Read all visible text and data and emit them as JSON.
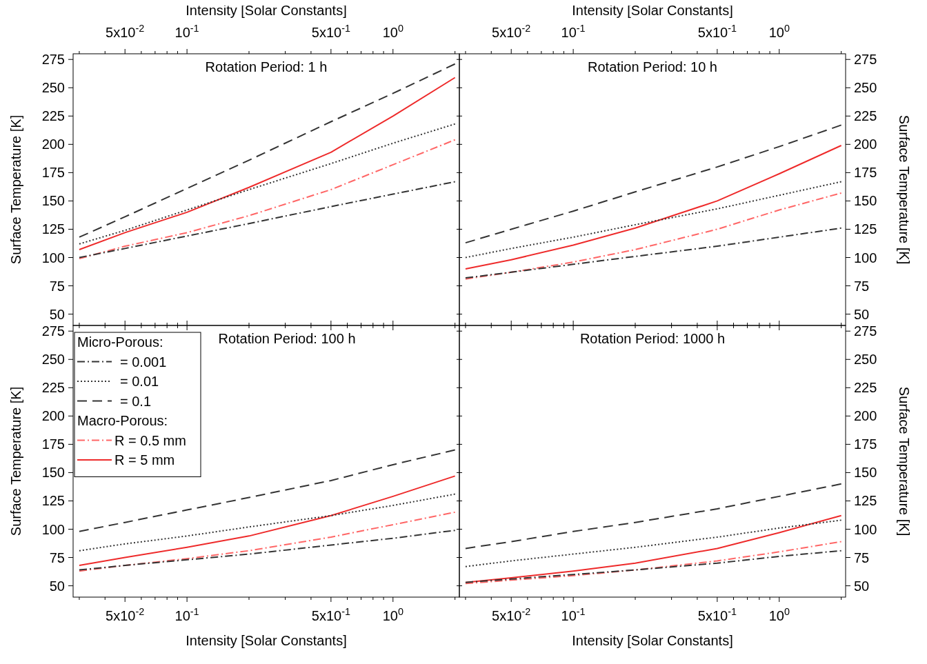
{
  "chart_data": [
    {
      "type": "line",
      "title": "Rotation Period: 1 h",
      "xlabel": "Intensity [Solar Constants]",
      "ylabel": "Surface Temperature [K]",
      "log": "x",
      "xlim": [
        0.028,
        2.1
      ],
      "xticks": [
        {
          "value": 0.03,
          "label": null
        },
        {
          "value": 0.04,
          "label": null
        },
        {
          "value": 0.05,
          "label": "5x10$^{-2}$"
        },
        {
          "value": 0.06,
          "label": null
        },
        {
          "value": 0.07,
          "label": null
        },
        {
          "value": 0.08,
          "label": null
        },
        {
          "value": 0.09,
          "label": null
        },
        {
          "value": 0.1,
          "label": "10$^{-1}$"
        },
        {
          "value": 0.2,
          "label": null
        },
        {
          "value": 0.3,
          "label": null
        },
        {
          "value": 0.4,
          "label": null
        },
        {
          "value": 0.5,
          "label": "5x10$^{-1}$"
        },
        {
          "value": 0.6,
          "label": null
        },
        {
          "value": 0.7,
          "label": null
        },
        {
          "value": 0.8,
          "label": null
        },
        {
          "value": 0.9,
          "label": null
        },
        {
          "value": 1,
          "label": "10$^{0}$"
        },
        {
          "value": 2,
          "label": null
        }
      ],
      "ylim": [
        40,
        280
      ],
      "yticks": [
        50,
        75,
        100,
        125,
        150,
        175,
        200,
        225,
        250,
        275
      ],
      "legend": false,
      "x": [
        0.03,
        0.05,
        0.1,
        0.2,
        0.5,
        1,
        2
      ],
      "series": [
        {
          "color": "#333333",
          "line_style": "dashdot",
          "values": [
            100,
            108,
            119,
            130,
            145,
            156,
            167
          ]
        },
        {
          "color": "#333333",
          "line_style": "dotted",
          "values": [
            112,
            124,
            142,
            160,
            183,
            201,
            218
          ]
        },
        {
          "color": "#333333",
          "line_style": "dashed",
          "values": [
            118,
            136,
            161,
            186,
            220,
            245,
            271
          ]
        },
        {
          "color": "#ff6666",
          "line_style": "dashdot",
          "values": [
            99,
            110,
            122,
            137,
            160,
            182,
            204
          ]
        },
        {
          "color": "#ee2a2a",
          "line_style": "solid",
          "values": [
            107,
            122,
            140,
            162,
            193,
            225,
            259
          ]
        }
      ]
    },
    {
      "type": "line",
      "title": "Rotation Period: 10 h",
      "xlabel": "Intensity [Solar Constants]",
      "ylabel": "Surface Temperature [K]",
      "log": "x",
      "xlim": [
        0.028,
        2.1
      ],
      "xticks": [
        {
          "value": 0.03,
          "label": null
        },
        {
          "value": 0.04,
          "label": null
        },
        {
          "value": 0.05,
          "label": "5x10$^{-2}$"
        },
        {
          "value": 0.06,
          "label": null
        },
        {
          "value": 0.07,
          "label": null
        },
        {
          "value": 0.08,
          "label": null
        },
        {
          "value": 0.09,
          "label": null
        },
        {
          "value": 0.1,
          "label": "10$^{-1}$"
        },
        {
          "value": 0.2,
          "label": null
        },
        {
          "value": 0.3,
          "label": null
        },
        {
          "value": 0.4,
          "label": null
        },
        {
          "value": 0.5,
          "label": "5x10$^{-1}$"
        },
        {
          "value": 0.6,
          "label": null
        },
        {
          "value": 0.7,
          "label": null
        },
        {
          "value": 0.8,
          "label": null
        },
        {
          "value": 0.9,
          "label": null
        },
        {
          "value": 1,
          "label": "10$^{0}$"
        },
        {
          "value": 2,
          "label": null
        }
      ],
      "ylim": [
        40,
        280
      ],
      "yticks": [
        50,
        75,
        100,
        125,
        150,
        175,
        200,
        225,
        250,
        275
      ],
      "legend": false,
      "x": [
        0.03,
        0.05,
        0.1,
        0.2,
        0.5,
        1,
        2
      ],
      "series": [
        {
          "color": "#333333",
          "line_style": "dashdot",
          "values": [
            82,
            87,
            94,
            101,
            110,
            118,
            126
          ]
        },
        {
          "color": "#333333",
          "line_style": "dotted",
          "values": [
            100,
            108,
            118,
            129,
            143,
            155,
            167
          ]
        },
        {
          "color": "#333333",
          "line_style": "dashed",
          "values": [
            113,
            125,
            141,
            158,
            180,
            198,
            217
          ]
        },
        {
          "color": "#ff6666",
          "line_style": "dashdot",
          "values": [
            81,
            87,
            96,
            107,
            125,
            142,
            157
          ]
        },
        {
          "color": "#ee2a2a",
          "line_style": "solid",
          "values": [
            90,
            98,
            111,
            126,
            150,
            174,
            199
          ]
        }
      ]
    },
    {
      "type": "line",
      "title": "Rotation Period: 100 h",
      "xlabel": "Intensity [Solar Constants]",
      "ylabel": "Surface Temperature [K]",
      "log": "x",
      "xlim": [
        0.028,
        2.1
      ],
      "xticks": [
        {
          "value": 0.03,
          "label": null
        },
        {
          "value": 0.04,
          "label": null
        },
        {
          "value": 0.05,
          "label": "5x10$^{-2}$"
        },
        {
          "value": 0.06,
          "label": null
        },
        {
          "value": 0.07,
          "label": null
        },
        {
          "value": 0.08,
          "label": null
        },
        {
          "value": 0.09,
          "label": null
        },
        {
          "value": 0.1,
          "label": "10$^{-1}$"
        },
        {
          "value": 0.2,
          "label": null
        },
        {
          "value": 0.3,
          "label": null
        },
        {
          "value": 0.4,
          "label": null
        },
        {
          "value": 0.5,
          "label": "5x10$^{-1}$"
        },
        {
          "value": 0.6,
          "label": null
        },
        {
          "value": 0.7,
          "label": null
        },
        {
          "value": 0.8,
          "label": null
        },
        {
          "value": 0.9,
          "label": null
        },
        {
          "value": 1,
          "label": "10$^{0}$"
        },
        {
          "value": 2,
          "label": null
        }
      ],
      "ylim": [
        40,
        280
      ],
      "yticks": [
        50,
        75,
        100,
        125,
        150,
        175,
        200,
        225,
        250,
        275
      ],
      "legend": "top left",
      "legend_title": "Micro-Porous:",
      "annotations": [
        "Macro-Porous:"
      ],
      "x": [
        0.03,
        0.05,
        0.1,
        0.2,
        0.5,
        1,
        2
      ],
      "series": [
        {
          "name": "= 0.001",
          "color": "#333333",
          "line_style": "dashdot",
          "values": [
            64,
            68,
            73,
            78,
            86,
            92,
            99
          ]
        },
        {
          "name": "= 0.01",
          "color": "#333333",
          "line_style": "dotted",
          "values": [
            81,
            87,
            94,
            102,
            112,
            121,
            131
          ]
        },
        {
          "name": "= 0.1",
          "color": "#333333",
          "line_style": "dashed",
          "values": [
            98,
            106,
            117,
            128,
            143,
            157,
            170
          ]
        },
        {
          "name": "R = 0.5 mm",
          "color": "#ff6666",
          "line_style": "dashdot",
          "values": [
            63,
            68,
            74,
            81,
            93,
            104,
            115
          ]
        },
        {
          "name": "R = 5 mm",
          "color": "#ee2a2a",
          "line_style": "solid",
          "values": [
            68,
            75,
            84,
            94,
            112,
            129,
            147
          ]
        }
      ]
    },
    {
      "type": "line",
      "title": "Rotation Period: 1000 h",
      "xlabel": "Intensity [Solar Constants]",
      "ylabel": "Surface Temperature [K]",
      "log": "x",
      "xlim": [
        0.028,
        2.1
      ],
      "xticks": [
        {
          "value": 0.03,
          "label": null
        },
        {
          "value": 0.04,
          "label": null
        },
        {
          "value": 0.05,
          "label": "5x10$^{-2}$"
        },
        {
          "value": 0.06,
          "label": null
        },
        {
          "value": 0.07,
          "label": null
        },
        {
          "value": 0.08,
          "label": null
        },
        {
          "value": 0.09,
          "label": null
        },
        {
          "value": 0.1,
          "label": "10$^{-1}$"
        },
        {
          "value": 0.2,
          "label": null
        },
        {
          "value": 0.3,
          "label": null
        },
        {
          "value": 0.4,
          "label": null
        },
        {
          "value": 0.5,
          "label": "5x10$^{-1}$"
        },
        {
          "value": 0.6,
          "label": null
        },
        {
          "value": 0.7,
          "label": null
        },
        {
          "value": 0.8,
          "label": null
        },
        {
          "value": 0.9,
          "label": null
        },
        {
          "value": 1,
          "label": "10$^{0}$"
        },
        {
          "value": 2,
          "label": null
        }
      ],
      "ylim": [
        40,
        280
      ],
      "yticks": [
        50,
        75,
        100,
        125,
        150,
        175,
        200,
        225,
        250,
        275
      ],
      "legend": false,
      "x": [
        0.03,
        0.05,
        0.1,
        0.2,
        0.5,
        1,
        2
      ],
      "series": [
        {
          "color": "#333333",
          "line_style": "dashdot",
          "values": [
            53,
            56,
            60,
            64,
            70,
            76,
            81
          ]
        },
        {
          "color": "#333333",
          "line_style": "dotted",
          "values": [
            67,
            72,
            78,
            84,
            93,
            101,
            108
          ]
        },
        {
          "color": "#333333",
          "line_style": "dashed",
          "values": [
            83,
            89,
            98,
            106,
            118,
            129,
            140
          ]
        },
        {
          "color": "#ff6666",
          "line_style": "dashdot",
          "values": [
            52,
            55,
            59,
            64,
            72,
            80,
            89
          ]
        },
        {
          "color": "#ee2a2a",
          "line_style": "solid",
          "values": [
            53,
            57,
            63,
            70,
            83,
            97,
            112
          ]
        }
      ]
    }
  ]
}
